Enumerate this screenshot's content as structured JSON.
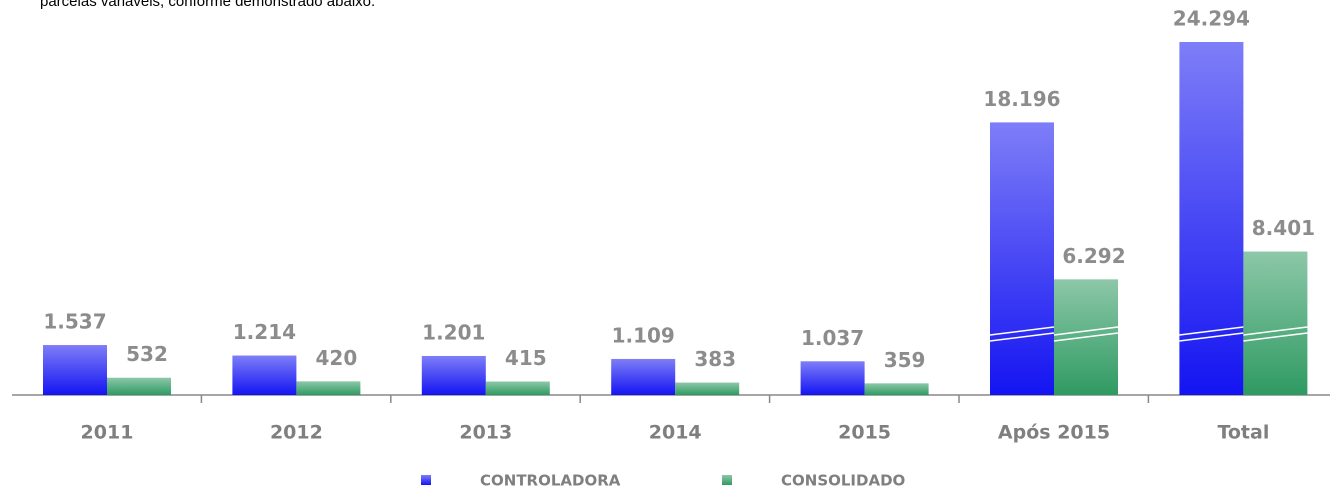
{
  "caption": "parcelas variáveis, conforme demonstrado abaixo.",
  "chart_data": {
    "type": "bar",
    "categories": [
      "2011",
      "2012",
      "2013",
      "2014",
      "2015",
      "Após 2015",
      "Total"
    ],
    "series": [
      {
        "name": "CONTROLADORA",
        "color": "#1414f2",
        "values": [
          1537,
          1214,
          1201,
          1109,
          1037,
          18196,
          24294
        ],
        "value_labels": [
          "1.537",
          "1.214",
          "1.201",
          "1.109",
          "1.037",
          "18.196",
          "24.294"
        ]
      },
      {
        "name": "CONSOLIDADO",
        "color": "#2f9a62",
        "values": [
          532,
          420,
          415,
          383,
          359,
          6292,
          8401
        ],
        "value_labels": [
          "532",
          "420",
          "415",
          "383",
          "359",
          "6.292",
          "8.401"
        ]
      }
    ],
    "legend": "bottom"
  }
}
